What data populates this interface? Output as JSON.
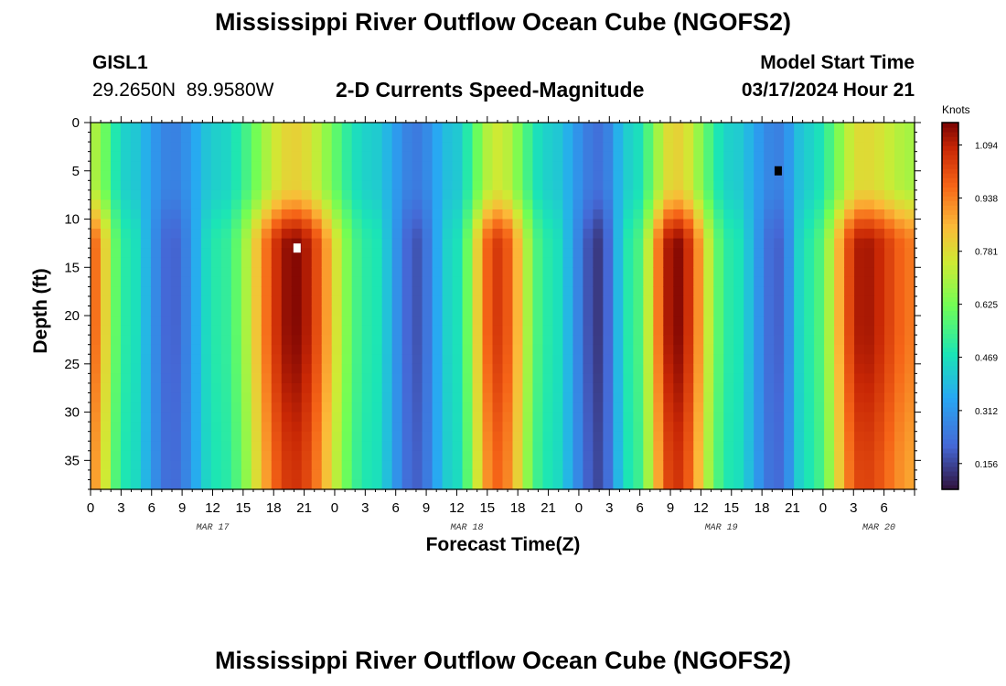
{
  "page": {
    "title_top": "Mississippi River Outflow Ocean Cube (NGOFS2)",
    "title_bottom": "Mississippi River Outflow Ocean Cube (NGOFS2)"
  },
  "station": {
    "id": "GISL1",
    "lat": "29.2650N",
    "lon": "89.9580W"
  },
  "plot_title": "2-D Currents Speed-Magnitude",
  "model_start": {
    "label": "Model Start Time",
    "value": "03/17/2024 Hour 21"
  },
  "chart_data": {
    "type": "heatmap",
    "xlabel": "Forecast Time(Z)",
    "ylabel": "Depth (ft)",
    "x_range_hours": [
      0,
      81
    ],
    "x_tick_labels": [
      "0",
      "3",
      "6",
      "9",
      "12",
      "15",
      "18",
      "21",
      "0",
      "3",
      "6",
      "9",
      "12",
      "15",
      "18",
      "21",
      "0",
      "3",
      "6",
      "9",
      "12",
      "15",
      "18",
      "21",
      "0",
      "3",
      "6"
    ],
    "date_labels": [
      "MAR 17",
      "MAR 18",
      "MAR 19",
      "MAR 20"
    ],
    "date_label_hours": [
      12,
      37,
      62,
      77.5
    ],
    "y_range_ft": [
      0,
      38
    ],
    "y_ticks": [
      0,
      5,
      10,
      15,
      20,
      25,
      30,
      35
    ],
    "colorbar": {
      "unit": "Knots",
      "min": 0.08,
      "max": 1.16,
      "tick_values": [
        1.094,
        0.938,
        0.781,
        0.625,
        0.469,
        0.312,
        0.156
      ],
      "tick_labels": [
        "1.094",
        "0.938",
        "0.781",
        "0.625",
        "0.469",
        "0.312",
        "0.156"
      ]
    },
    "speed_peaks_hours": [
      {
        "hour": 0,
        "value": 0.98
      },
      {
        "hour": 3.5,
        "value": 0.5
      },
      {
        "hour": 8,
        "value": 0.2
      },
      {
        "hour": 12.5,
        "value": 0.5
      },
      {
        "hour": 20,
        "value": 1.15
      },
      {
        "hour": 27.5,
        "value": 0.5
      },
      {
        "hour": 32,
        "value": 0.18
      },
      {
        "hour": 35.5,
        "value": 0.45
      },
      {
        "hour": 40,
        "value": 1.05
      },
      {
        "hour": 45,
        "value": 0.5
      },
      {
        "hour": 50,
        "value": 0.14
      },
      {
        "hour": 53,
        "value": 0.5
      },
      {
        "hour": 57.5,
        "value": 1.15
      },
      {
        "hour": 63,
        "value": 0.5
      },
      {
        "hour": 67.5,
        "value": 0.2
      },
      {
        "hour": 70.5,
        "value": 0.5
      },
      {
        "hour": 76,
        "value": 1.12
      },
      {
        "hour": 81,
        "value": 0.95
      }
    ],
    "markers": [
      {
        "color": "#ffffff",
        "hour": 20.3,
        "depth_ft": 13
      },
      {
        "color": "#000000",
        "hour": 67.6,
        "depth_ft": 5
      }
    ]
  }
}
